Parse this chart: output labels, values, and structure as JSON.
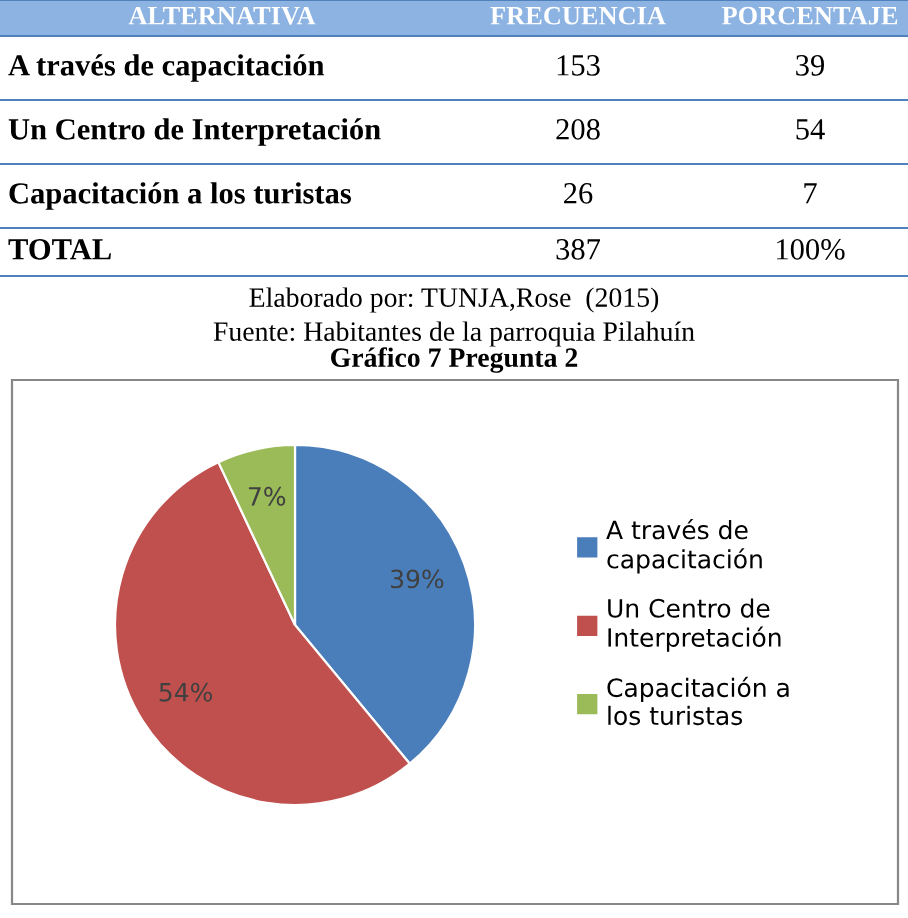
{
  "chart_data": [
    {
      "type": "other",
      "xlabel": "ALTERNATIVA",
      "categories": [
        "A través de capacitación",
        "Un Centro de Interpretación",
        "Capacitación a los turistas"
      ],
      "series": [
        {
          "name": "FRECUENCIA",
          "values": [
            153,
            208,
            26
          ]
        },
        {
          "name": "PORCENTAJE",
          "values": [
            39,
            54,
            7
          ]
        }
      ],
      "data_labels": true,
      "totals": [
        "TOTAL",
        "387",
        "100%"
      ],
      "annotations": [
        "Elaborado por: TUNJA,Rose  (2015)",
        "Fuente: Habitantes de la parroquia Pilahuín"
      ]
    },
    {
      "type": "pie",
      "title": "Gráfico 7 Pregunta 2",
      "categories": [
        "A través de capacitación",
        "Un Centro de Interpretación",
        "Capacitación a los turistas"
      ],
      "values": [
        39,
        54,
        7
      ],
      "colors": [
        "#4a7ebb",
        "#c0504d",
        "#9bbb59"
      ],
      "value_labels": [
        "39%",
        "54%",
        "7%"
      ],
      "legend": "right"
    }
  ]
}
